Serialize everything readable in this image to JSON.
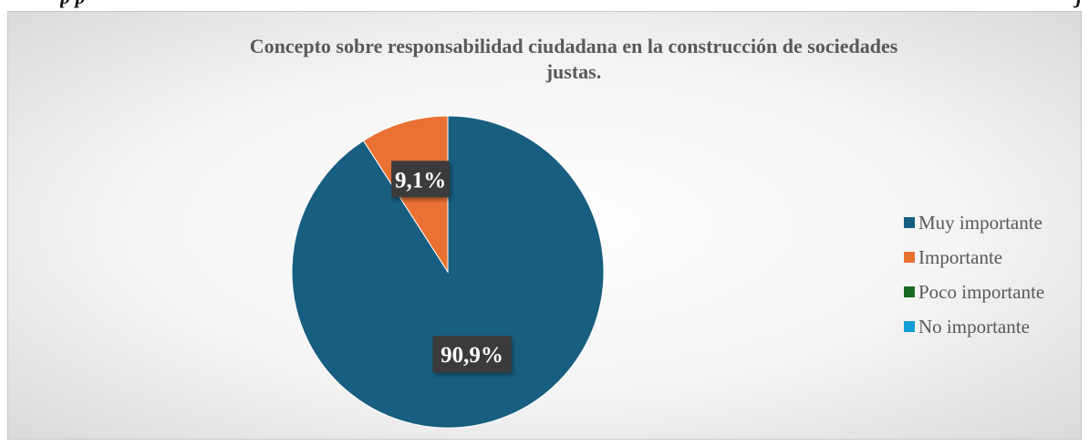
{
  "caption_fragment": {
    "left": "p                   p",
    "right": "j"
  },
  "chart_data": {
    "type": "pie",
    "title_lines": [
      "Concepto sobre responsabilidad ciudadana en la construcción de sociedades",
      "justas."
    ],
    "start_angle_deg": 0,
    "slices": [
      {
        "name": "Muy importante",
        "value": 90.9,
        "label": "90,9%",
        "color": "#175e80"
      },
      {
        "name": "Importante",
        "value": 9.1,
        "label": "9,1%",
        "color": "#e97132"
      },
      {
        "name": "Poco importante",
        "value": 0,
        "label": "",
        "color": "#196b24"
      },
      {
        "name": "No importante",
        "value": 0,
        "label": "",
        "color": "#0f9ed5"
      }
    ],
    "legend_position": "right",
    "data_label_style": {
      "background": "#3b3b3b",
      "color": "#ffffff"
    }
  }
}
